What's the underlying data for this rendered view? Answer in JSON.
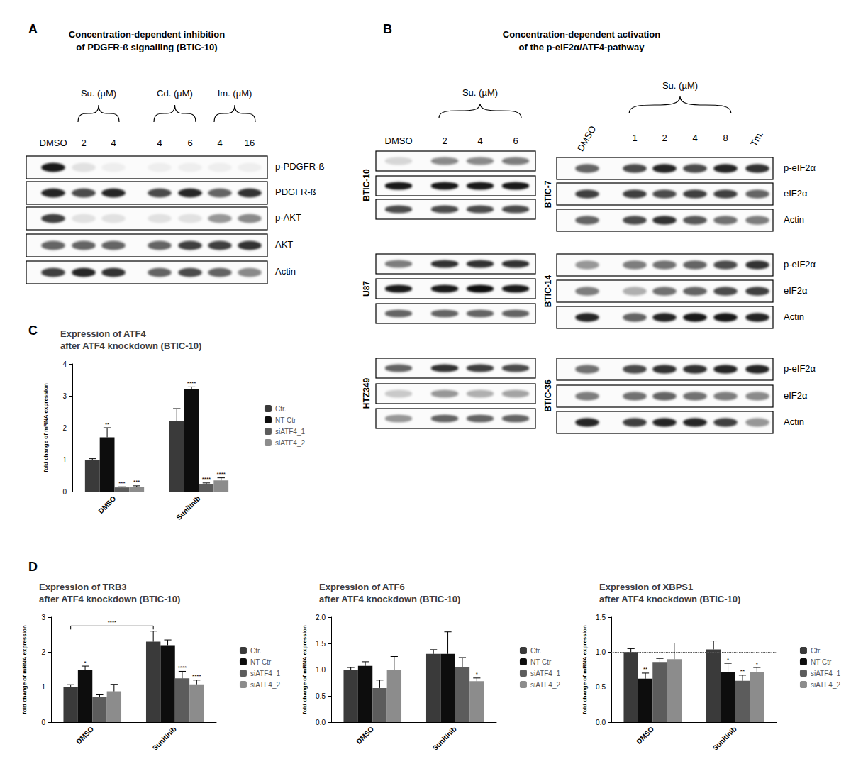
{
  "panel_letters": [
    "A",
    "B",
    "C",
    "D"
  ],
  "blots": {
    "A": {
      "title": "Concentration-dependent inhibition\nof PDGFR-ß signalling (BTIC-10)",
      "lanes": [
        "DMSO",
        "2",
        "4",
        "4",
        "6",
        "4",
        "16"
      ],
      "groups": [
        {
          "label": "Su. (µM)",
          "lanes": [
            1,
            2
          ]
        },
        {
          "label": "Cd. (µM)",
          "lanes": [
            3,
            4
          ]
        },
        {
          "label": "Im. (µM)",
          "lanes": [
            5,
            6
          ]
        }
      ],
      "rows": [
        {
          "label": "p-PDGFR-ß",
          "intensity": [
            0.9,
            0.1,
            0.05,
            0.05,
            0.05,
            0.05,
            0.05
          ]
        },
        {
          "label": "PDGFR-ß",
          "intensity": [
            0.85,
            0.7,
            0.85,
            0.7,
            0.85,
            0.6,
            0.8
          ]
        },
        {
          "label": "p-AKT",
          "intensity": [
            0.75,
            0.1,
            0.1,
            0.1,
            0.1,
            0.4,
            0.45
          ]
        },
        {
          "label": "AKT",
          "intensity": [
            0.6,
            0.6,
            0.6,
            0.6,
            0.75,
            0.75,
            0.8
          ]
        },
        {
          "label": "Actin",
          "intensity": [
            0.75,
            0.85,
            0.8,
            0.6,
            0.7,
            0.6,
            0.45
          ]
        }
      ]
    },
    "B": {
      "title": "Concentration-dependent activation\nof the p-eIF2α/ATF4-pathway",
      "left": {
        "lanes": [
          "DMSO",
          "2",
          "4",
          "6"
        ],
        "groups": [
          {
            "label": "Su. (µM)",
            "lanes": [
              1,
              3
            ]
          }
        ],
        "blots": [
          {
            "cell_line": "BTIC-10",
            "rows": [
              {
                "intensity": [
                  0.15,
                  0.45,
                  0.45,
                  0.5
                ]
              },
              {
                "intensity": [
                  0.9,
                  0.9,
                  0.9,
                  0.9
                ]
              },
              {
                "intensity": [
                  0.7,
                  0.7,
                  0.7,
                  0.7
                ]
              }
            ]
          },
          {
            "cell_line": "U87",
            "rows": [
              {
                "intensity": [
                  0.5,
                  0.8,
                  0.8,
                  0.8
                ]
              },
              {
                "intensity": [
                  0.9,
                  0.9,
                  0.95,
                  0.9
                ]
              },
              {
                "intensity": [
                  0.6,
                  0.6,
                  0.6,
                  0.6
                ]
              }
            ]
          },
          {
            "cell_line": "HTZ349",
            "rows": [
              {
                "intensity": [
                  0.6,
                  0.8,
                  0.75,
                  0.7
                ]
              },
              {
                "intensity": [
                  0.2,
                  0.4,
                  0.3,
                  0.35
                ]
              },
              {
                "intensity": [
                  0.4,
                  0.6,
                  0.6,
                  0.6
                ]
              }
            ]
          }
        ]
      },
      "right": {
        "lanes": [
          "DMSO",
          "1",
          "2",
          "4",
          "8",
          "Tm."
        ],
        "groups": [
          {
            "label": "Su. (µM)",
            "lanes": [
              1,
              4
            ]
          }
        ],
        "blots": [
          {
            "cell_line": "BTIC-7",
            "rows": [
              {
                "label": "p-eIF2α",
                "intensity": [
                  0.6,
                  0.7,
                  0.85,
                  0.7,
                  0.85,
                  0.8
                ]
              },
              {
                "label": "eIF2α",
                "intensity": [
                  0.75,
                  0.75,
                  0.7,
                  0.75,
                  0.75,
                  0.6
                ]
              },
              {
                "label": "Actin",
                "intensity": [
                  0.6,
                  0.7,
                  0.8,
                  0.65,
                  0.55,
                  0.5
                ]
              }
            ]
          },
          {
            "cell_line": "BTIC-14",
            "rows": [
              {
                "label": "p-eIF2α",
                "intensity": [
                  0.4,
                  0.5,
                  0.55,
                  0.6,
                  0.7,
                  0.8
                ]
              },
              {
                "label": "eIF2α",
                "intensity": [
                  0.5,
                  0.3,
                  0.55,
                  0.6,
                  0.7,
                  0.75
                ]
              },
              {
                "label": "Actin",
                "intensity": [
                  0.85,
                  0.6,
                  0.85,
                  0.9,
                  0.9,
                  0.85
                ]
              }
            ]
          },
          {
            "cell_line": "BTIC-36",
            "rows": [
              {
                "label": "p-eIF2α",
                "intensity": [
                  0.55,
                  0.7,
                  0.8,
                  0.8,
                  0.85,
                  0.85
                ]
              },
              {
                "label": "eIF2α",
                "intensity": [
                  0.5,
                  0.55,
                  0.6,
                  0.55,
                  0.5,
                  0.45
                ]
              },
              {
                "label": "Actin",
                "intensity": [
                  0.85,
                  0.75,
                  0.85,
                  0.85,
                  0.75,
                  0.4
                ]
              }
            ]
          }
        ]
      }
    }
  },
  "chart_data": [
    {
      "type": "bar",
      "title": "Expression of ATF4\nafter ATF4 knockdown (BTIC-10)",
      "y_label": "fold change of mRNA expression",
      "categories": [
        "DMSO",
        "Sunitinib"
      ],
      "ylim": [
        0,
        4
      ],
      "yticks": [
        0,
        1,
        2,
        3,
        4
      ],
      "reference_line": 1,
      "grid": false,
      "legend": "right",
      "series": [
        {
          "name": "Ctr.",
          "color": "#3a3a3a",
          "values": [
            1.0,
            2.2
          ],
          "errors": [
            0.03,
            0.4
          ],
          "significance": [
            null,
            null
          ]
        },
        {
          "name": "NT-Ctr",
          "color": "#0d0d0d",
          "values": [
            1.7,
            3.2
          ],
          "errors": [
            0.3,
            0.08
          ],
          "significance": [
            "**",
            "****"
          ]
        },
        {
          "name": "siATF4_1",
          "color": "#5c5c5c",
          "values": [
            0.13,
            0.22
          ],
          "errors": [
            0.02,
            0.05
          ],
          "significance": [
            "***",
            "****"
          ]
        },
        {
          "name": "siATF4_2",
          "color": "#8c8c8c",
          "values": [
            0.15,
            0.35
          ],
          "errors": [
            0.03,
            0.08
          ],
          "significance": [
            "***",
            "****"
          ]
        }
      ]
    },
    {
      "type": "bar",
      "title": "Expression of TRB3\nafter ATF4 knockdown (BTIC-10)",
      "y_label": "fold change of mRNA expression",
      "categories": [
        "DMSO",
        "Sunitinib"
      ],
      "ylim": [
        0,
        3
      ],
      "yticks": [
        0,
        1,
        2,
        3
      ],
      "reference_line": 1,
      "grid": false,
      "legend": "right",
      "brackets": [
        {
          "from": [
            0,
            0
          ],
          "to": [
            1,
            0
          ],
          "y": 2.75,
          "label": "****"
        }
      ],
      "series": [
        {
          "name": "Ctr.",
          "color": "#3a3a3a",
          "values": [
            1.0,
            2.3
          ],
          "errors": [
            0.07,
            0.3
          ],
          "significance": [
            null,
            null
          ]
        },
        {
          "name": "NT-Ctr",
          "color": "#0d0d0d",
          "values": [
            1.5,
            2.2
          ],
          "errors": [
            0.1,
            0.15
          ],
          "significance": [
            "*",
            null
          ]
        },
        {
          "name": "siATF4_1",
          "color": "#5c5c5c",
          "values": [
            0.73,
            1.25
          ],
          "errors": [
            0.05,
            0.2
          ],
          "significance": [
            null,
            "****"
          ]
        },
        {
          "name": "siATF4_2",
          "color": "#8c8c8c",
          "values": [
            0.88,
            1.08
          ],
          "errors": [
            0.2,
            0.12
          ],
          "significance": [
            null,
            "****"
          ]
        }
      ]
    },
    {
      "type": "bar",
      "title": "Expression of ATF6\nafter ATF4 knockdown (BTIC-10)",
      "y_label": "fold change of mRNA expression",
      "categories": [
        "DMSO",
        "Sunitinib"
      ],
      "ylim": [
        0,
        2
      ],
      "yticks": [
        {
          "value": 0,
          "label": "0.0"
        },
        {
          "value": 0.5,
          "label": "0.5"
        },
        {
          "value": 1,
          "label": "1.0"
        },
        {
          "value": 1.5,
          "label": "1.5"
        },
        {
          "value": 2,
          "label": "2.0"
        }
      ],
      "reference_line": 1,
      "grid": false,
      "legend": "right",
      "series": [
        {
          "name": "Ctr.",
          "color": "#3a3a3a",
          "values": [
            1.0,
            1.3
          ],
          "errors": [
            0.04,
            0.08
          ],
          "significance": [
            null,
            null
          ]
        },
        {
          "name": "NT-Ctr",
          "color": "#0d0d0d",
          "values": [
            1.07,
            1.3
          ],
          "errors": [
            0.08,
            0.42
          ],
          "significance": [
            null,
            null
          ]
        },
        {
          "name": "siATF4_1",
          "color": "#5c5c5c",
          "values": [
            0.65,
            1.05
          ],
          "errors": [
            0.15,
            0.18
          ],
          "significance": [
            null,
            null
          ]
        },
        {
          "name": "siATF4_2",
          "color": "#8c8c8c",
          "values": [
            1.0,
            0.78
          ],
          "errors": [
            0.25,
            0.06
          ],
          "significance": [
            null,
            "*"
          ]
        }
      ]
    },
    {
      "type": "bar",
      "title": "Expression of XBPS1\nafter ATF4 knockdown (BTIC-10)",
      "y_label": "fold change of mRNA expression",
      "categories": [
        "DMSO",
        "Sunitinib"
      ],
      "ylim": [
        0,
        1.5
      ],
      "yticks": [
        {
          "value": 0,
          "label": "0.0"
        },
        {
          "value": 0.5,
          "label": "0.5"
        },
        {
          "value": 1,
          "label": "1.0"
        },
        {
          "value": 1.5,
          "label": "1.5"
        }
      ],
      "reference_line": 1,
      "grid": false,
      "legend": "right",
      "series": [
        {
          "name": "Ctr.",
          "color": "#3a3a3a",
          "values": [
            1.0,
            1.04
          ],
          "errors": [
            0.05,
            0.12
          ],
          "significance": [
            null,
            null
          ]
        },
        {
          "name": "NT-Ctr",
          "color": "#0d0d0d",
          "values": [
            0.62,
            0.72
          ],
          "errors": [
            0.08,
            0.12
          ],
          "significance": [
            "**",
            "*"
          ]
        },
        {
          "name": "siATF4_1",
          "color": "#5c5c5c",
          "values": [
            0.86,
            0.59
          ],
          "errors": [
            0.05,
            0.08
          ],
          "significance": [
            null,
            "**"
          ]
        },
        {
          "name": "siATF4_2",
          "color": "#8c8c8c",
          "values": [
            0.9,
            0.72
          ],
          "errors": [
            0.23,
            0.06
          ],
          "significance": [
            null,
            "*"
          ]
        }
      ]
    }
  ]
}
